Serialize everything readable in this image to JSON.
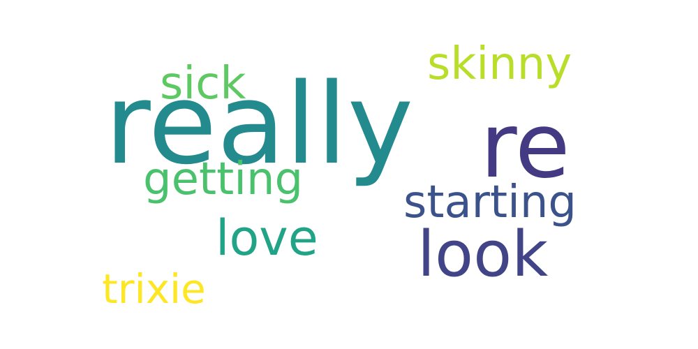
{
  "words": [
    {
      "text": "really",
      "color": "#238a8d"
    },
    {
      "text": "re",
      "color": "#443a83"
    },
    {
      "text": "skinny",
      "color": "#b8de29"
    },
    {
      "text": "sick",
      "color": "#5ec962"
    },
    {
      "text": "getting",
      "color": "#4ac16d"
    },
    {
      "text": "starting",
      "color": "#3b528b"
    },
    {
      "text": "love",
      "color": "#20a386"
    },
    {
      "text": "look",
      "color": "#414487"
    },
    {
      "text": "trixie",
      "color": "#fde725"
    }
  ]
}
